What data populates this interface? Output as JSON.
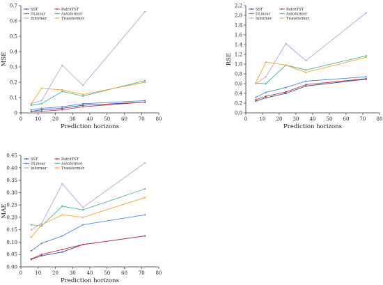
{
  "chart_data": [
    {
      "type": "line",
      "xlabel": "Prediction horizons",
      "ylabel": "MSE",
      "xlim": [
        0,
        80
      ],
      "ylim": [
        0,
        0.7
      ],
      "xticks": [
        "0",
        "10",
        "20",
        "30",
        "40",
        "50",
        "60",
        "70",
        "80"
      ],
      "yticks": [
        "0",
        "0.1",
        "0.2",
        "0.3",
        "0.4",
        "0.5",
        "0.6",
        "0.7"
      ],
      "x": [
        6,
        12,
        24,
        36,
        72
      ],
      "legend_position": "top-left",
      "grid": false,
      "series": [
        {
          "name": "SST",
          "values": [
            0.01,
            0.02,
            0.03,
            0.05,
            0.07
          ]
        },
        {
          "name": "PatchTST",
          "values": [
            0.01,
            0.01,
            0.02,
            0.04,
            0.07
          ]
        },
        {
          "name": "DLinear",
          "values": [
            0.02,
            0.03,
            0.04,
            0.06,
            0.08
          ]
        },
        {
          "name": "Autoformer",
          "values": [
            0.05,
            0.06,
            0.14,
            0.11,
            0.21
          ]
        },
        {
          "name": "Informer",
          "values": [
            0.06,
            0.08,
            0.31,
            0.18,
            0.66
          ]
        },
        {
          "name": "Transformer",
          "values": [
            0.06,
            0.16,
            0.15,
            0.12,
            0.2
          ]
        }
      ]
    },
    {
      "type": "line",
      "xlabel": "Prediction horizons",
      "ylabel": "RSE",
      "xlim": [
        0,
        80
      ],
      "ylim": [
        0,
        2.2
      ],
      "xticks": [
        "0",
        "10",
        "20",
        "30",
        "40",
        "50",
        "60",
        "70",
        "80"
      ],
      "yticks": [
        "0.0",
        "0.2",
        "0.4",
        "0.6",
        "0.8",
        "1.0",
        "1.2",
        "1.4",
        "1.6",
        "1.8",
        "2.0",
        "2.2"
      ],
      "x": [
        6,
        12,
        24,
        36,
        72
      ],
      "legend_position": "top-left",
      "grid": false,
      "series": [
        {
          "name": "SST",
          "values": [
            0.24,
            0.31,
            0.4,
            0.55,
            0.69
          ]
        },
        {
          "name": "PatchTST",
          "values": [
            0.27,
            0.34,
            0.43,
            0.58,
            0.7
          ]
        },
        {
          "name": "DLinear",
          "values": [
            0.32,
            0.42,
            0.52,
            0.65,
            0.74
          ]
        },
        {
          "name": "Autoformer",
          "values": [
            0.61,
            0.6,
            0.98,
            0.88,
            1.17
          ]
        },
        {
          "name": "Informer",
          "values": [
            0.6,
            0.74,
            1.42,
            1.07,
            2.05
          ]
        },
        {
          "name": "Transformer",
          "values": [
            0.62,
            1.04,
            0.98,
            0.83,
            1.14
          ]
        }
      ]
    },
    {
      "type": "line",
      "xlabel": "Prediction horizons",
      "ylabel": "MAE",
      "xlim": [
        0,
        80
      ],
      "ylim": [
        0,
        0.45
      ],
      "xticks": [
        "0",
        "10",
        "20",
        "30",
        "40",
        "50",
        "60",
        "70",
        "80"
      ],
      "yticks": [
        "0.00",
        "0.05",
        "0.10",
        "0.15",
        "0.20",
        "0.25",
        "0.30",
        "0.35",
        "0.40",
        "0.45"
      ],
      "x": [
        6,
        12,
        24,
        36,
        72
      ],
      "legend_position": "top-left",
      "grid": false,
      "series": [
        {
          "name": "SST",
          "values": [
            0.03,
            0.045,
            0.06,
            0.09,
            0.125
          ]
        },
        {
          "name": "PatchTST",
          "values": [
            0.032,
            0.05,
            0.07,
            0.09,
            0.125
          ]
        },
        {
          "name": "DLinear",
          "values": [
            0.065,
            0.095,
            0.125,
            0.17,
            0.21
          ]
        },
        {
          "name": "Autoformer",
          "values": [
            0.17,
            0.165,
            0.245,
            0.23,
            0.315
          ]
        },
        {
          "name": "Informer",
          "values": [
            0.15,
            0.175,
            0.335,
            0.24,
            0.42
          ]
        },
        {
          "name": "Transformer",
          "values": [
            0.12,
            0.17,
            0.21,
            0.2,
            0.28
          ]
        }
      ]
    }
  ],
  "colors": {
    "SST": "#2f4fa3",
    "PatchTST": "#c9343c",
    "DLinear": "#4e86d6",
    "Autoformer": "#4bb39c",
    "Informer": "#b7a1dd",
    "Transformer": "#f2a531"
  },
  "legend_order": [
    "SST",
    "PatchTST",
    "DLinear",
    "Autoformer",
    "Informer",
    "Transformer"
  ]
}
